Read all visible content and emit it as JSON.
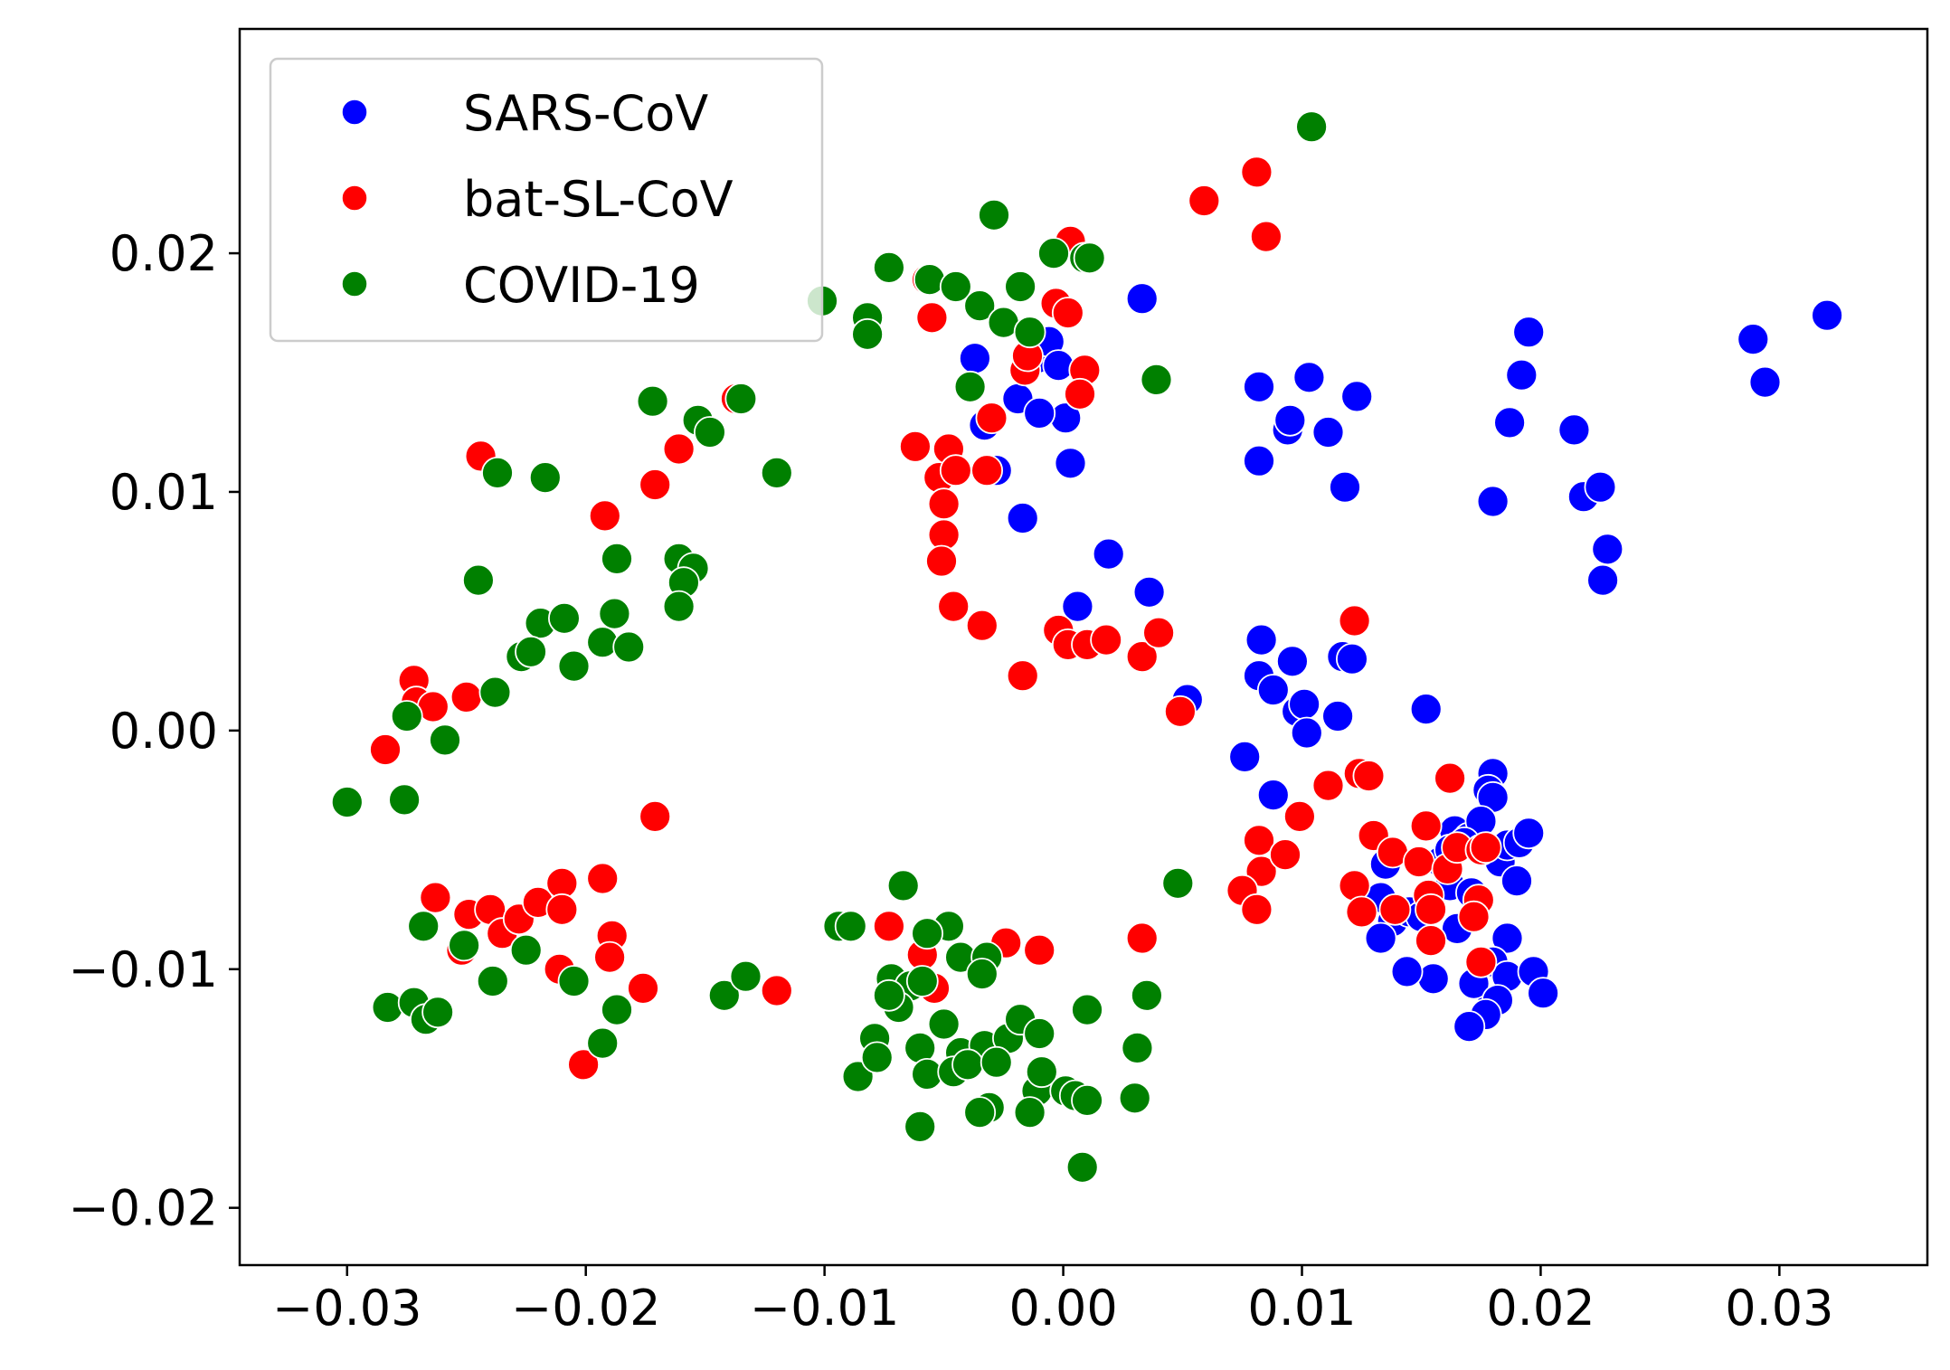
{
  "chart_data": {
    "type": "scatter",
    "xlim": [
      -0.0345,
      0.0362
    ],
    "ylim": [
      -0.0224,
      0.0294
    ],
    "x_ticks": [
      -0.03,
      -0.02,
      -0.01,
      0.0,
      0.01,
      0.02,
      0.03
    ],
    "x_tick_labels": [
      "−0.03",
      "−0.02",
      "−0.01",
      "0.00",
      "0.01",
      "0.02",
      "0.03"
    ],
    "y_ticks": [
      -0.02,
      -0.01,
      0.0,
      0.01,
      0.02
    ],
    "y_tick_labels": [
      "−0.02",
      "−0.01",
      "0.00",
      "0.01",
      "0.02"
    ],
    "grid": false,
    "legend_position": "top-left",
    "series": [
      {
        "name": "SARS-CoV",
        "color": "#0000ff",
        "points": [
          [
            -0.0037,
            0.0156
          ],
          [
            -0.0019,
            0.0139
          ],
          [
            -0.0011,
            0.0156
          ],
          [
            -0.0006,
            0.0163
          ],
          [
            -0.0002,
            0.0153
          ],
          [
            0.0001,
            0.0131
          ],
          [
            -0.001,
            0.0133
          ],
          [
            -0.0033,
            0.0128
          ],
          [
            -0.0028,
            0.0109
          ],
          [
            -0.0017,
            0.0089
          ],
          [
            0.0003,
            0.0112
          ],
          [
            0.0033,
            0.0181
          ],
          [
            0.0019,
            0.0074
          ],
          [
            0.0006,
            0.0052
          ],
          [
            0.0036,
            0.0058
          ],
          [
            0.0052,
            0.0013
          ],
          [
            0.0082,
            0.0144
          ],
          [
            0.0082,
            0.0113
          ],
          [
            0.0094,
            0.0126
          ],
          [
            0.0095,
            0.013
          ],
          [
            0.0103,
            0.0148
          ],
          [
            0.0111,
            0.0125
          ],
          [
            0.0118,
            0.0102
          ],
          [
            0.0123,
            0.014
          ],
          [
            0.018,
            0.0096
          ],
          [
            0.0187,
            0.0129
          ],
          [
            0.0192,
            0.0149
          ],
          [
            0.0195,
            0.0167
          ],
          [
            0.0214,
            0.0126
          ],
          [
            0.0218,
            0.0098
          ],
          [
            0.0225,
            0.0102
          ],
          [
            0.0226,
            0.0063
          ],
          [
            0.0228,
            0.0076
          ],
          [
            0.0289,
            0.0164
          ],
          [
            0.0294,
            0.0146
          ],
          [
            0.032,
            0.0174
          ],
          [
            0.0083,
            0.0038
          ],
          [
            0.0082,
            0.0023
          ],
          [
            0.0088,
            0.0017
          ],
          [
            0.0096,
            0.0029
          ],
          [
            0.0098,
            0.0008
          ],
          [
            0.0101,
            0.0011
          ],
          [
            0.0102,
            -0.0001
          ],
          [
            0.0115,
            0.0006
          ],
          [
            0.0117,
            0.0031
          ],
          [
            0.0121,
            0.003
          ],
          [
            0.0076,
            -0.0011
          ],
          [
            0.0088,
            -0.0027
          ],
          [
            0.0152,
            0.0009
          ],
          [
            0.018,
            -0.0018
          ],
          [
            0.0178,
            -0.0025
          ],
          [
            0.018,
            -0.0028
          ],
          [
            0.0164,
            -0.0042
          ],
          [
            0.017,
            -0.0045
          ],
          [
            0.0175,
            -0.0038
          ],
          [
            0.0183,
            -0.0055
          ],
          [
            0.0186,
            -0.0048
          ],
          [
            0.0191,
            -0.0047
          ],
          [
            0.0195,
            -0.0043
          ],
          [
            0.019,
            -0.0063
          ],
          [
            0.0135,
            -0.0056
          ],
          [
            0.0133,
            -0.007
          ],
          [
            0.0138,
            -0.008
          ],
          [
            0.0133,
            -0.0087
          ],
          [
            0.0145,
            -0.0076
          ],
          [
            0.0162,
            -0.0065
          ],
          [
            0.0165,
            -0.0083
          ],
          [
            0.0171,
            -0.0068
          ],
          [
            0.0186,
            -0.0087
          ],
          [
            0.018,
            -0.0097
          ],
          [
            0.0186,
            -0.0103
          ],
          [
            0.0197,
            -0.0101
          ],
          [
            0.0201,
            -0.011
          ],
          [
            0.018,
            -0.0113
          ],
          [
            0.0172,
            -0.0106
          ],
          [
            0.0182,
            -0.0113
          ],
          [
            0.0177,
            -0.0119
          ],
          [
            0.017,
            -0.0124
          ],
          [
            0.0155,
            -0.0104
          ],
          [
            0.0144,
            -0.0101
          ],
          [
            0.015,
            -0.0078
          ],
          [
            0.0158,
            -0.0055
          ],
          [
            0.0162,
            -0.005
          ],
          [
            0.0168,
            -0.0047
          ]
        ]
      },
      {
        "name": "bat-SL-CoV",
        "color": "#ff0000",
        "points": [
          [
            0.0003,
            0.0205
          ],
          [
            0.0081,
            0.0234
          ],
          [
            0.0085,
            0.0207
          ],
          [
            0.0059,
            0.0222
          ],
          [
            -0.0057,
            0.0189
          ],
          [
            -0.0055,
            0.0173
          ],
          [
            -0.0003,
            0.0179
          ],
          [
            0.0002,
            0.0175
          ],
          [
            0.0009,
            0.0151
          ],
          [
            0.0007,
            0.0141
          ],
          [
            -0.0016,
            0.0151
          ],
          [
            -0.0015,
            0.0157
          ],
          [
            -0.003,
            0.0131
          ],
          [
            -0.0062,
            0.0119
          ],
          [
            -0.0048,
            0.0118
          ],
          [
            -0.0052,
            0.0106
          ],
          [
            -0.0045,
            0.0109
          ],
          [
            -0.0032,
            0.0109
          ],
          [
            -0.005,
            0.0095
          ],
          [
            -0.005,
            0.0082
          ],
          [
            -0.0051,
            0.0071
          ],
          [
            -0.0046,
            0.0052
          ],
          [
            -0.0034,
            0.0044
          ],
          [
            -0.0017,
            0.0023
          ],
          [
            -0.0002,
            0.0042
          ],
          [
            0.0002,
            0.0036
          ],
          [
            0.001,
            0.0036
          ],
          [
            0.0018,
            0.0038
          ],
          [
            0.0033,
            0.0031
          ],
          [
            0.004,
            0.0041
          ],
          [
            0.0049,
            0.0008
          ],
          [
            0.0122,
            0.0046
          ],
          [
            -0.0137,
            0.0139
          ],
          [
            -0.0161,
            0.0118
          ],
          [
            -0.0171,
            0.0103
          ],
          [
            -0.0192,
            0.009
          ],
          [
            -0.0244,
            0.0115
          ],
          [
            -0.0272,
            0.0021
          ],
          [
            -0.0271,
            0.0012
          ],
          [
            -0.0264,
            0.001
          ],
          [
            -0.025,
            0.0014
          ],
          [
            -0.0284,
            -0.0008
          ],
          [
            -0.0171,
            -0.0036
          ],
          [
            -0.0263,
            -0.007
          ],
          [
            -0.0252,
            -0.0092
          ],
          [
            -0.0249,
            -0.0077
          ],
          [
            -0.024,
            -0.0075
          ],
          [
            -0.0235,
            -0.0085
          ],
          [
            -0.0228,
            -0.0079
          ],
          [
            -0.022,
            -0.0072
          ],
          [
            -0.021,
            -0.0064
          ],
          [
            -0.021,
            -0.0075
          ],
          [
            -0.0211,
            -0.01
          ],
          [
            -0.0193,
            -0.0062
          ],
          [
            -0.0189,
            -0.0086
          ],
          [
            -0.019,
            -0.0095
          ],
          [
            -0.0176,
            -0.0108
          ],
          [
            -0.0201,
            -0.014
          ],
          [
            -0.012,
            -0.0109
          ],
          [
            -0.0073,
            -0.0082
          ],
          [
            -0.0059,
            -0.0094
          ],
          [
            -0.0054,
            -0.0108
          ],
          [
            -0.0024,
            -0.0089
          ],
          [
            -0.001,
            -0.0092
          ],
          [
            0.0033,
            -0.0087
          ],
          [
            0.0082,
            -0.0046
          ],
          [
            0.0083,
            -0.0059
          ],
          [
            0.0093,
            -0.0052
          ],
          [
            0.0099,
            -0.0036
          ],
          [
            0.0111,
            -0.0023
          ],
          [
            0.0124,
            -0.0018
          ],
          [
            0.0128,
            -0.0019
          ],
          [
            0.0075,
            -0.0067
          ],
          [
            0.0081,
            -0.0075
          ],
          [
            0.013,
            -0.0044
          ],
          [
            0.0138,
            -0.0051
          ],
          [
            0.0122,
            -0.0065
          ],
          [
            0.0125,
            -0.0076
          ],
          [
            0.0139,
            -0.0075
          ],
          [
            0.0149,
            -0.0055
          ],
          [
            0.0152,
            -0.004
          ],
          [
            0.0162,
            -0.002
          ],
          [
            0.0153,
            -0.0069
          ],
          [
            0.0154,
            -0.0075
          ],
          [
            0.0154,
            -0.0088
          ],
          [
            0.0161,
            -0.0058
          ],
          [
            0.0165,
            -0.0049
          ],
          [
            0.0175,
            -0.005
          ],
          [
            0.0177,
            -0.0049
          ],
          [
            0.0174,
            -0.0071
          ],
          [
            0.0172,
            -0.0078
          ],
          [
            0.0175,
            -0.0097
          ]
        ]
      },
      {
        "name": "COVID-19",
        "color": "#008000",
        "points": [
          [
            0.0104,
            0.0253
          ],
          [
            -0.0029,
            0.0216
          ],
          [
            -0.0004,
            0.02
          ],
          [
            0.0009,
            0.0198
          ],
          [
            0.0011,
            0.0198
          ],
          [
            -0.0073,
            0.0194
          ],
          [
            -0.0056,
            0.0189
          ],
          [
            -0.0045,
            0.0186
          ],
          [
            -0.0018,
            0.0186
          ],
          [
            -0.0101,
            0.018
          ],
          [
            -0.0035,
            0.0178
          ],
          [
            -0.0025,
            0.0171
          ],
          [
            -0.0014,
            0.0167
          ],
          [
            -0.0082,
            0.0173
          ],
          [
            -0.0082,
            0.0166
          ],
          [
            -0.0039,
            0.0144
          ],
          [
            0.0039,
            0.0147
          ],
          [
            -0.0172,
            0.0138
          ],
          [
            -0.0153,
            0.013
          ],
          [
            -0.0148,
            0.0125
          ],
          [
            -0.0135,
            0.0139
          ],
          [
            -0.012,
            0.0108
          ],
          [
            -0.0237,
            0.0108
          ],
          [
            -0.0217,
            0.0106
          ],
          [
            -0.0187,
            0.0072
          ],
          [
            -0.0161,
            0.0072
          ],
          [
            -0.0155,
            0.0068
          ],
          [
            -0.0159,
            0.0062
          ],
          [
            -0.0161,
            0.0052
          ],
          [
            -0.0245,
            0.0063
          ],
          [
            -0.0219,
            0.0045
          ],
          [
            -0.0209,
            0.0047
          ],
          [
            -0.0188,
            0.0049
          ],
          [
            -0.0193,
            0.0037
          ],
          [
            -0.0182,
            0.0035
          ],
          [
            -0.0227,
            0.0031
          ],
          [
            -0.0223,
            0.0033
          ],
          [
            -0.0205,
            0.0027
          ],
          [
            -0.0238,
            0.0016
          ],
          [
            -0.0275,
            0.0006
          ],
          [
            -0.0259,
            -0.0004
          ],
          [
            -0.03,
            -0.003
          ],
          [
            -0.0276,
            -0.0029
          ],
          [
            -0.0268,
            -0.0082
          ],
          [
            -0.0251,
            -0.009
          ],
          [
            -0.0225,
            -0.0092
          ],
          [
            -0.0239,
            -0.0105
          ],
          [
            -0.0205,
            -0.0105
          ],
          [
            -0.0283,
            -0.0116
          ],
          [
            -0.0272,
            -0.0114
          ],
          [
            -0.0267,
            -0.0121
          ],
          [
            -0.0262,
            -0.0118
          ],
          [
            -0.0187,
            -0.0117
          ],
          [
            -0.0193,
            -0.0131
          ],
          [
            -0.0142,
            -0.0111
          ],
          [
            -0.0133,
            -0.0103
          ],
          [
            0.0048,
            -0.0064
          ],
          [
            -0.0067,
            -0.0065
          ],
          [
            -0.0094,
            -0.0082
          ],
          [
            -0.0089,
            -0.0082
          ],
          [
            -0.0048,
            -0.0082
          ],
          [
            -0.0057,
            -0.0085
          ],
          [
            -0.0043,
            -0.0095
          ],
          [
            -0.0032,
            -0.0095
          ],
          [
            -0.0034,
            -0.0102
          ],
          [
            -0.0072,
            -0.0104
          ],
          [
            -0.0064,
            -0.0107
          ],
          [
            -0.0059,
            -0.0105
          ],
          [
            -0.0069,
            -0.0116
          ],
          [
            -0.0073,
            -0.0111
          ],
          [
            -0.005,
            -0.0123
          ],
          [
            -0.0079,
            -0.0129
          ],
          [
            -0.006,
            -0.0133
          ],
          [
            -0.0043,
            -0.0135
          ],
          [
            -0.0033,
            -0.0132
          ],
          [
            -0.0023,
            -0.0129
          ],
          [
            -0.0018,
            -0.0121
          ],
          [
            -0.001,
            -0.0127
          ],
          [
            0.001,
            -0.0117
          ],
          [
            0.0035,
            -0.0111
          ],
          [
            0.0031,
            -0.0133
          ],
          [
            0.003,
            -0.0154
          ],
          [
            -0.0086,
            -0.0145
          ],
          [
            -0.0078,
            -0.0137
          ],
          [
            -0.0057,
            -0.0144
          ],
          [
            -0.0046,
            -0.0143
          ],
          [
            -0.004,
            -0.014
          ],
          [
            -0.0028,
            -0.0139
          ],
          [
            -0.0011,
            -0.0151
          ],
          [
            -0.0009,
            -0.0143
          ],
          [
            0.0001,
            -0.0151
          ],
          [
            0.0005,
            -0.0153
          ],
          [
            0.001,
            -0.0155
          ],
          [
            -0.0031,
            -0.0158
          ],
          [
            -0.0035,
            -0.016
          ],
          [
            -0.0014,
            -0.016
          ],
          [
            -0.006,
            -0.0166
          ],
          [
            0.0008,
            -0.0183
          ]
        ]
      }
    ]
  }
}
